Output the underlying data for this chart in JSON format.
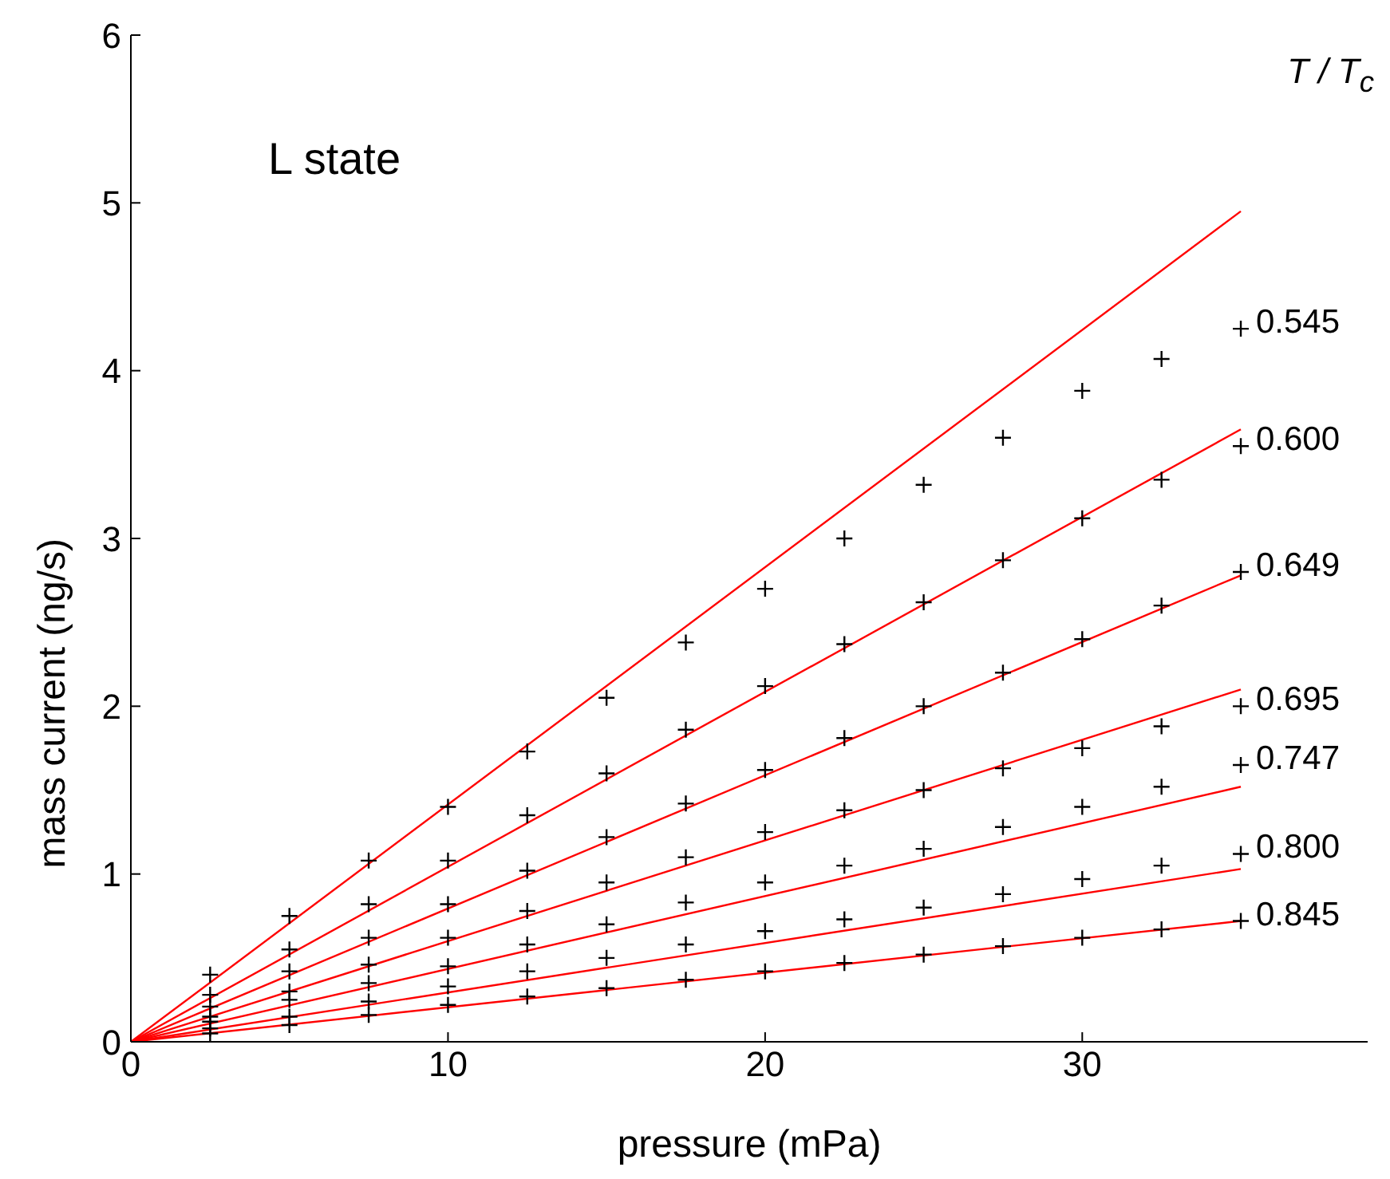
{
  "chart_data": {
    "type": "scatter",
    "xlabel": "pressure (mPa)",
    "ylabel": "mass current (ng/s)",
    "legend_title": "T / T$_{c}$",
    "annotations": [
      "L state"
    ],
    "xlim": [
      0,
      39
    ],
    "xticks": [
      0,
      10,
      20,
      30
    ],
    "ylim": [
      0,
      6
    ],
    "yticks": [
      0,
      1,
      2,
      3,
      4,
      5,
      6
    ],
    "grid": false,
    "legend": false,
    "marker": "cross",
    "x": [
      0,
      2.5,
      5,
      7.5,
      10,
      12.5,
      15,
      17.5,
      20,
      22.5,
      25,
      27.5,
      30,
      32.5,
      35
    ],
    "series": [
      {
        "name": "0.545",
        "color": "#000000",
        "values": [
          null,
          0.4,
          0.75,
          1.08,
          1.4,
          1.73,
          2.05,
          2.38,
          2.7,
          3.0,
          3.32,
          3.6,
          3.88,
          4.07,
          4.25
        ]
      },
      {
        "name": "0.600",
        "color": "#000000",
        "values": [
          null,
          0.28,
          0.55,
          0.82,
          1.08,
          1.35,
          1.6,
          1.86,
          2.12,
          2.37,
          2.62,
          2.87,
          3.12,
          3.35,
          3.55
        ]
      },
      {
        "name": "0.649",
        "color": "#000000",
        "values": [
          null,
          0.21,
          0.42,
          0.62,
          0.82,
          1.02,
          1.22,
          1.42,
          1.62,
          1.81,
          2.0,
          2.2,
          2.4,
          2.6,
          2.8
        ]
      },
      {
        "name": "0.695",
        "color": "#000000",
        "values": [
          null,
          0.15,
          0.3,
          0.46,
          0.62,
          0.78,
          0.95,
          1.1,
          1.25,
          1.38,
          1.5,
          1.63,
          1.75,
          1.88,
          2.0
        ]
      },
      {
        "name": "0.747",
        "color": "#000000",
        "values": [
          null,
          0.12,
          0.25,
          0.35,
          0.45,
          0.58,
          0.7,
          0.83,
          0.95,
          1.05,
          1.15,
          1.28,
          1.4,
          1.52,
          1.65
        ]
      },
      {
        "name": "0.800",
        "color": "#000000",
        "values": [
          null,
          0.08,
          0.15,
          0.24,
          0.33,
          0.42,
          0.5,
          0.58,
          0.66,
          0.73,
          0.8,
          0.88,
          0.97,
          1.05,
          1.12
        ]
      },
      {
        "name": "0.845",
        "color": "#000000",
        "values": [
          null,
          0.05,
          0.1,
          0.16,
          0.22,
          0.27,
          0.32,
          0.37,
          0.42,
          0.47,
          0.52,
          0.57,
          0.62,
          0.67,
          0.72
        ]
      },
      {
        "type": "line",
        "marker": "none",
        "color": "#ff0000",
        "values": [
          0,
          null,
          null,
          null,
          null,
          null,
          null,
          null,
          null,
          null,
          null,
          null,
          null,
          null,
          4.95
        ]
      },
      {
        "type": "line",
        "marker": "none",
        "color": "#ff0000",
        "values": [
          0,
          null,
          null,
          null,
          null,
          null,
          null,
          null,
          null,
          null,
          null,
          null,
          null,
          null,
          3.65
        ]
      },
      {
        "type": "line",
        "marker": "none",
        "color": "#ff0000",
        "values": [
          0,
          null,
          null,
          null,
          null,
          null,
          null,
          null,
          null,
          null,
          null,
          null,
          null,
          null,
          2.78
        ]
      },
      {
        "type": "line",
        "marker": "none",
        "color": "#ff0000",
        "values": [
          0,
          null,
          null,
          null,
          null,
          null,
          null,
          null,
          null,
          null,
          null,
          null,
          null,
          null,
          2.1
        ]
      },
      {
        "type": "line",
        "marker": "none",
        "color": "#ff0000",
        "values": [
          0,
          null,
          null,
          null,
          null,
          null,
          null,
          null,
          null,
          null,
          null,
          null,
          null,
          null,
          1.52
        ]
      },
      {
        "type": "line",
        "marker": "none",
        "color": "#ff0000",
        "values": [
          0,
          null,
          null,
          null,
          null,
          null,
          null,
          null,
          null,
          null,
          null,
          null,
          null,
          null,
          1.03
        ]
      },
      {
        "type": "line",
        "marker": "none",
        "color": "#ff0000",
        "values": [
          0,
          null,
          null,
          null,
          null,
          null,
          null,
          null,
          null,
          null,
          null,
          null,
          null,
          null,
          0.72
        ]
      }
    ]
  }
}
